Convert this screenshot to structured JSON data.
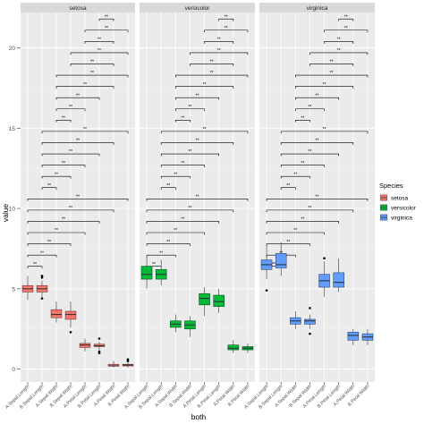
{
  "chart_data": {
    "type": "boxplot",
    "xlabel": "both",
    "ylabel": "value",
    "ylim": [
      -0.8,
      22.2
    ],
    "yticks": [
      0,
      5,
      10,
      15,
      20
    ],
    "grid": true,
    "legend_position": "right",
    "legend": {
      "title": "Species",
      "items": [
        {
          "label": "setosa",
          "color": "#F8766D"
        },
        {
          "label": "versicolor",
          "color": "#00BA38"
        },
        {
          "label": "virginica",
          "color": "#619CFF"
        }
      ]
    },
    "categories": [
      "A.Sepal.Length",
      "B.Sepal.Length",
      "A.Sepal.Width",
      "B.Sepal.Width",
      "A.Petal.Length",
      "B.Petal.Length",
      "A.Petal.Width",
      "B.Petal.Width"
    ],
    "significance_label": "**",
    "panels": [
      {
        "name": "setosa",
        "color": "#F8766D",
        "boxes": [
          {
            "category": "A.Sepal.Length",
            "min": 4.3,
            "q1": 4.8,
            "median": 5.0,
            "q3": 5.2,
            "max": 5.8,
            "outliers": []
          },
          {
            "category": "B.Sepal.Length",
            "min": 4.4,
            "q1": 4.8,
            "median": 5.0,
            "q3": 5.2,
            "max": 5.5,
            "outliers": [
              5.7,
              5.8,
              4.4
            ]
          },
          {
            "category": "A.Sepal.Width",
            "min": 2.9,
            "q1": 3.2,
            "median": 3.4,
            "q3": 3.7,
            "max": 4.2,
            "outliers": []
          },
          {
            "category": "B.Sepal.Width",
            "min": 2.6,
            "q1": 3.1,
            "median": 3.4,
            "q3": 3.6,
            "max": 4.2,
            "outliers": [
              2.3
            ]
          },
          {
            "category": "A.Petal.Length",
            "min": 1.1,
            "q1": 1.35,
            "median": 1.5,
            "q3": 1.6,
            "max": 1.9,
            "outliers": []
          },
          {
            "category": "B.Petal.Length",
            "min": 1.2,
            "q1": 1.4,
            "median": 1.45,
            "q3": 1.55,
            "max": 1.7,
            "outliers": [
              1.9,
              1.1,
              1.0
            ]
          },
          {
            "category": "A.Petal.Width",
            "min": 0.1,
            "q1": 0.2,
            "median": 0.2,
            "q3": 0.3,
            "max": 0.5,
            "outliers": []
          },
          {
            "category": "B.Petal.Width",
            "min": 0.1,
            "q1": 0.2,
            "median": 0.25,
            "q3": 0.3,
            "max": 0.4,
            "outliers": [
              0.5,
              0.6
            ]
          }
        ]
      },
      {
        "name": "versicolor",
        "color": "#00BA38",
        "boxes": [
          {
            "category": "A.Sepal.Length",
            "min": 5.0,
            "q1": 5.6,
            "median": 5.9,
            "q3": 6.4,
            "max": 7.0,
            "outliers": []
          },
          {
            "category": "B.Sepal.Length",
            "min": 5.2,
            "q1": 5.6,
            "median": 5.9,
            "q3": 6.2,
            "max": 6.8,
            "outliers": []
          },
          {
            "category": "A.Sepal.Width",
            "min": 2.3,
            "q1": 2.6,
            "median": 2.8,
            "q3": 3.0,
            "max": 3.4,
            "outliers": []
          },
          {
            "category": "B.Sepal.Width",
            "min": 2.0,
            "q1": 2.5,
            "median": 2.75,
            "q3": 3.0,
            "max": 3.3,
            "outliers": []
          },
          {
            "category": "A.Petal.Length",
            "min": 3.3,
            "q1": 4.0,
            "median": 4.4,
            "q3": 4.7,
            "max": 5.1,
            "outliers": []
          },
          {
            "category": "B.Petal.Length",
            "min": 3.5,
            "q1": 3.9,
            "median": 4.2,
            "q3": 4.6,
            "max": 5.0,
            "outliers": []
          },
          {
            "category": "A.Petal.Width",
            "min": 1.0,
            "q1": 1.2,
            "median": 1.3,
            "q3": 1.5,
            "max": 1.8,
            "outliers": []
          },
          {
            "category": "B.Petal.Width",
            "min": 1.0,
            "q1": 1.2,
            "median": 1.3,
            "q3": 1.4,
            "max": 1.6,
            "outliers": []
          }
        ]
      },
      {
        "name": "virginica",
        "color": "#619CFF",
        "boxes": [
          {
            "category": "A.Sepal.Length",
            "min": 5.6,
            "q1": 6.2,
            "median": 6.5,
            "q3": 6.8,
            "max": 7.7,
            "outliers": [
              4.9
            ]
          },
          {
            "category": "B.Sepal.Length",
            "min": 5.8,
            "q1": 6.3,
            "median": 6.5,
            "q3": 7.2,
            "max": 7.9,
            "outliers": []
          },
          {
            "category": "A.Sepal.Width",
            "min": 2.5,
            "q1": 2.8,
            "median": 3.0,
            "q3": 3.2,
            "max": 3.6,
            "outliers": []
          },
          {
            "category": "B.Sepal.Width",
            "min": 2.5,
            "q1": 2.8,
            "median": 3.0,
            "q3": 3.1,
            "max": 3.4,
            "outliers": [
              3.8,
              2.2
            ]
          },
          {
            "category": "A.Petal.Length",
            "min": 4.5,
            "q1": 5.1,
            "median": 5.5,
            "q3": 5.9,
            "max": 6.7,
            "outliers": [
              6.9
            ]
          },
          {
            "category": "B.Petal.Length",
            "min": 4.8,
            "q1": 5.1,
            "median": 5.4,
            "q3": 6.0,
            "max": 6.9,
            "outliers": []
          },
          {
            "category": "A.Petal.Width",
            "min": 1.5,
            "q1": 1.8,
            "median": 2.1,
            "q3": 2.3,
            "max": 2.5,
            "outliers": []
          },
          {
            "category": "B.Petal.Width",
            "min": 1.5,
            "q1": 1.8,
            "median": 2.0,
            "q3": 2.2,
            "max": 2.5,
            "outliers": []
          }
        ]
      }
    ],
    "comparisons": [
      {
        "from": 1,
        "to": 2,
        "y": 6.4
      },
      {
        "from": 1,
        "to": 3,
        "y": 7.1
      },
      {
        "from": 1,
        "to": 4,
        "y": 7.8
      },
      {
        "from": 1,
        "to": 5,
        "y": 8.5
      },
      {
        "from": 1,
        "to": 6,
        "y": 9.2
      },
      {
        "from": 1,
        "to": 7,
        "y": 9.9
      },
      {
        "from": 1,
        "to": 8,
        "y": 10.6
      },
      {
        "from": 2,
        "to": 3,
        "y": 11.3
      },
      {
        "from": 2,
        "to": 4,
        "y": 12.0
      },
      {
        "from": 2,
        "to": 5,
        "y": 12.7
      },
      {
        "from": 2,
        "to": 6,
        "y": 13.4
      },
      {
        "from": 2,
        "to": 7,
        "y": 14.1
      },
      {
        "from": 2,
        "to": 8,
        "y": 14.8
      },
      {
        "from": 3,
        "to": 4,
        "y": 15.5
      },
      {
        "from": 3,
        "to": 5,
        "y": 16.2
      },
      {
        "from": 3,
        "to": 6,
        "y": 16.9
      },
      {
        "from": 3,
        "to": 7,
        "y": 17.6
      },
      {
        "from": 3,
        "to": 8,
        "y": 18.3
      },
      {
        "from": 4,
        "to": 7,
        "y": 19.0
      },
      {
        "from": 4,
        "to": 8,
        "y": 19.7
      },
      {
        "from": 5,
        "to": 7,
        "y": 20.4
      },
      {
        "from": 5,
        "to": 8,
        "y": 21.1
      },
      {
        "from": 6,
        "to": 7,
        "y": 21.8
      }
    ]
  }
}
